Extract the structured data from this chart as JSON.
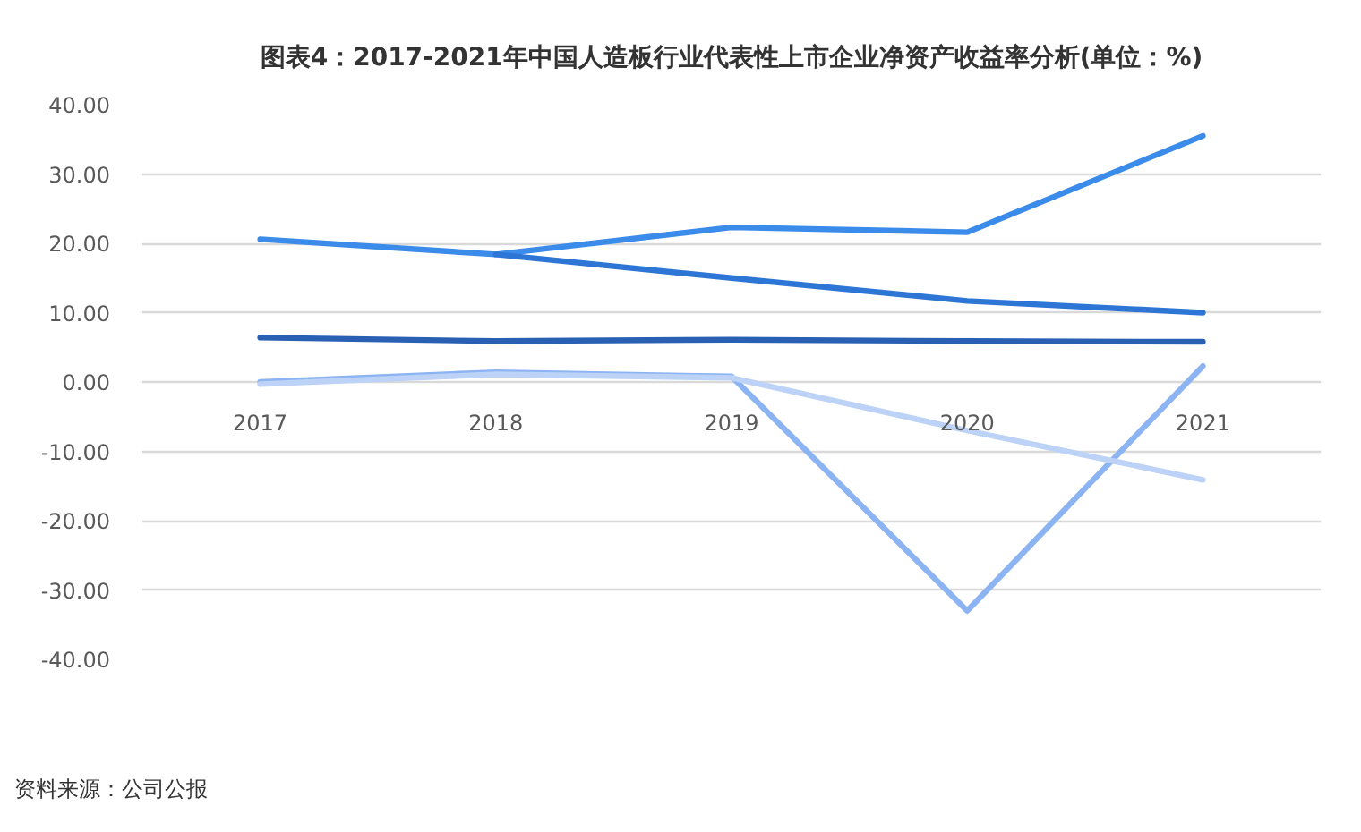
{
  "chart_data": {
    "type": "line",
    "title": "图表4：2017-2021年中国人造板行业代表性上市企业净资产收益率分析(单位：%)",
    "categories": [
      "2017",
      "2018",
      "2019",
      "2020",
      "2021"
    ],
    "series": [
      {
        "color": "#3b8beb",
        "values": [
          20.6,
          18.4,
          22.3,
          21.6,
          35.5
        ]
      },
      {
        "color": "#2e76d6",
        "values": [
          null,
          18.4,
          15.0,
          11.7,
          10.0
        ]
      },
      {
        "color": "#2a60b4",
        "values": [
          6.4,
          5.9,
          6.1,
          5.9,
          5.8
        ]
      },
      {
        "color": "#8db4f2",
        "values": [
          0.0,
          1.4,
          0.8,
          -33.0,
          2.3
        ]
      },
      {
        "color": "#bcd2f6",
        "values": [
          -0.3,
          1.1,
          0.6,
          -7.0,
          -14.1
        ]
      }
    ],
    "ylim": [
      -40,
      40
    ],
    "yticks": [
      {
        "value": 40,
        "label": "40.00"
      },
      {
        "value": 30,
        "label": "30.00"
      },
      {
        "value": 20,
        "label": "20.00"
      },
      {
        "value": 10,
        "label": "10.00"
      },
      {
        "value": 0,
        "label": "0.00"
      },
      {
        "value": -10,
        "label": "-10.00"
      },
      {
        "value": -20,
        "label": "-20.00"
      },
      {
        "value": -30,
        "label": "-30.00"
      },
      {
        "value": -40,
        "label": "-40.00"
      }
    ],
    "grid": "y",
    "marker": "none",
    "line_style": "solid",
    "annotations": [
      "资料来源：公司公报"
    ]
  }
}
